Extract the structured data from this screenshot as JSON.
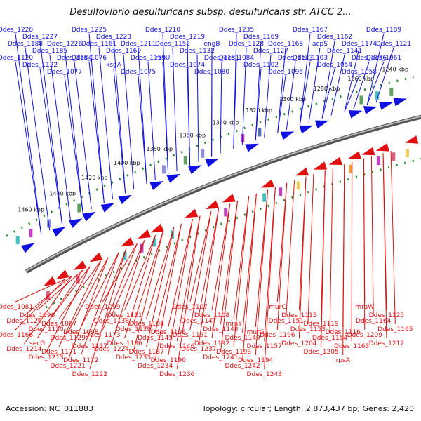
{
  "title": "Desulfovibrio desulfuricans subsp. desulfuricans str. ATCC 2...",
  "footer": {
    "accession": "Accession: NC_011883",
    "summary": "Topology: circular; Length: 2,873,437 bp; Genes: 2,420"
  },
  "colors": {
    "forward": "#1010e0",
    "reverse": "#e01010",
    "backbone": "#777777",
    "ticks": "#228822"
  },
  "scale_labels": [
    "1460 kbp",
    "1440 kbp",
    "1420 kbp",
    "1400 kbp",
    "1380 kbp",
    "1360 kbp",
    "1340 kbp",
    "1320 kbp",
    "1300 kbp",
    "1280 kbp",
    "1260 kbp",
    "1240 kbp"
  ],
  "forward_genes": [
    "Ddes_1228",
    "Ddes_1227",
    "Ddes_1226",
    "Ddes_1225",
    "Ddes_1223",
    "Ddes_1211",
    "Ddes_1210",
    "Ddes_1219",
    "engB",
    "Ddes_1235",
    "Ddes_1169",
    "Ddes_1168",
    "Ddes_1167",
    "Ddes_1162",
    "Ddes_1174",
    "Ddes_1189",
    "Ddes_1188",
    "Ddes_1185",
    "Ddes_1184",
    "Ddes_1161",
    "Ddes_1160",
    "Ddes_1159",
    "Ddes_1152",
    "Ddes_1132",
    "Ddes_1131",
    "Ddes_1128",
    "Ddes_1127",
    "Ddes_1123",
    "acpS",
    "Ddes_1141",
    "Ddes_1136",
    "Ddes_1121",
    "Ddes_1120",
    "Ddes_1122",
    "Ddes_1077",
    "Ddes_1076",
    "ksgA",
    "Ddes_1075",
    "rpsU",
    "Ddes_1074",
    "Ddes_1080",
    "Ddes_1084",
    "Ddes_1102",
    "Ddes_1095",
    "Ddes_1103",
    "Ddes_1054",
    "Ddes_1058",
    "Ddes_1061"
  ],
  "reverse_genes": [
    "Ddes_1081",
    "Ddes_1096",
    "Ddes_1097",
    "Ddes_1098",
    "Ddes_1099",
    "Ddes_1101",
    "Ddes_1104",
    "Ddes_1106",
    "Ddes_1107",
    "Ddes_1108",
    "mraY",
    "murG",
    "murC",
    "Ddes_1115",
    "Ddes_1119",
    "Ddes_1116",
    "mraW",
    "Ddes_1125",
    "Ddes_1126",
    "Ddes_1130",
    "Ddes_1129",
    "Ddes_1137",
    "Ddes_1138",
    "Ddes_1139",
    "Ddes_1145",
    "Ddes_1146",
    "Ddes_1147",
    "Ddes_1148",
    "Ddes_1149",
    "Ddes_1157",
    "Ddes_1151",
    "Ddes_1153",
    "Ddes_1154",
    "Ddes_1163",
    "Ddes_1164",
    "Ddes_1165",
    "Ddes_1166",
    "secG",
    "Ddes_1171",
    "Ddes_1172",
    "Ddes_1173",
    "Ddes_1186",
    "Ddes_1187",
    "Ddes_1190",
    "Ddes_1191",
    "Ddes_1192",
    "Ddes_1193",
    "Ddes_1194",
    "Ddes_1196",
    "Ddes_1204",
    "Ddes_1205",
    "rpsA",
    "Ddes_1209",
    "Ddes_1212",
    "Ddes_1214",
    "Ddes_1213",
    "Ddes_1221",
    "Ddes_1222",
    "Ddes_1224",
    "Ddes_1233",
    "Ddes_1234",
    "Ddes_1236",
    "Ddes_1237",
    "Ddes_1241",
    "Ddes_1242",
    "Ddes_1243"
  ]
}
